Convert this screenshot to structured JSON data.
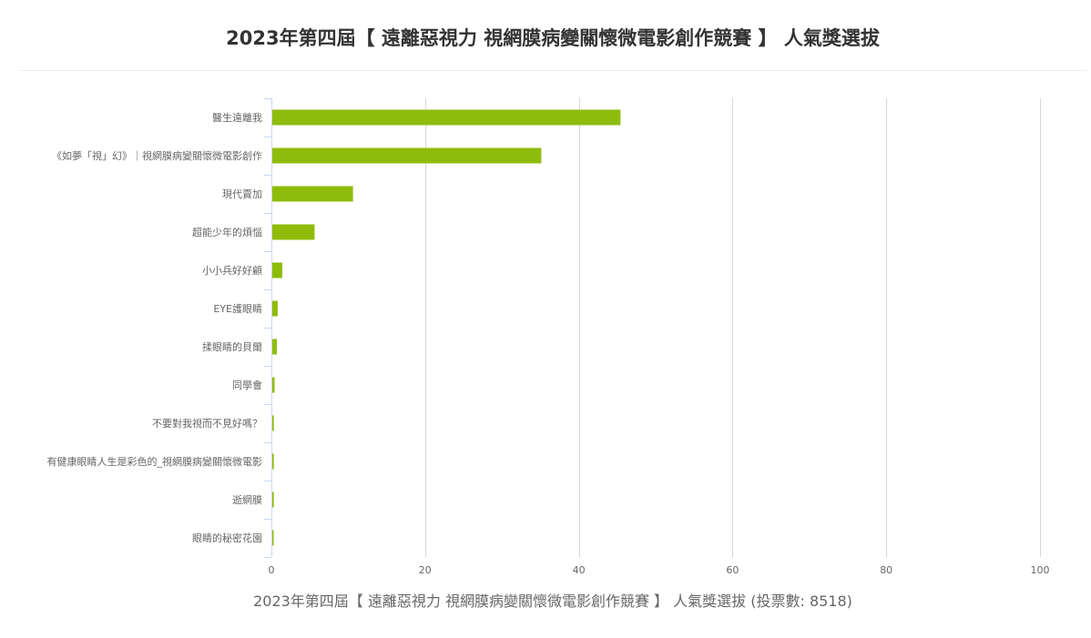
{
  "chart_data": {
    "type": "bar",
    "orientation": "horizontal",
    "title": "2023年第四屆【 遠離惡視力 視網膜病變關懷微電影創作競賽 】 人氣獎選拔",
    "xlabel": "2023年第四屆【 遠離惡視力 視網膜病變關懷微電影創作競賽 】 人氣獎選拔 (投票數: 8518)",
    "categories": [
      "醫生遠離我",
      "《如夢「視」幻》｜視網膜病變關懷微電影創作",
      "現代賣加",
      "超能少年的煩惱",
      "小小兵好好顧",
      "EYE護眼睛",
      "揉眼睛的貝爾",
      "同學會",
      "不要對我視而不見好嗎？",
      "有健康眼睛人生是彩色的_視網膜病變關懷微電影",
      "逝網膜",
      "眼睛的秘密花園"
    ],
    "values": [
      45.3,
      35.0,
      10.5,
      5.5,
      1.3,
      0.7,
      0.6,
      0.3,
      0.2,
      0.2,
      0.2,
      0.1
    ],
    "xlim": [
      0,
      100
    ],
    "xticks": [
      "0",
      "20",
      "40",
      "60",
      "80",
      "100"
    ],
    "grid": true,
    "legend": "none",
    "colors": {
      "bar": "#8fbc0b",
      "grid": "#d8d8d8",
      "axis": "#ccd6eb",
      "text": "#666666",
      "title": "#333333"
    }
  }
}
